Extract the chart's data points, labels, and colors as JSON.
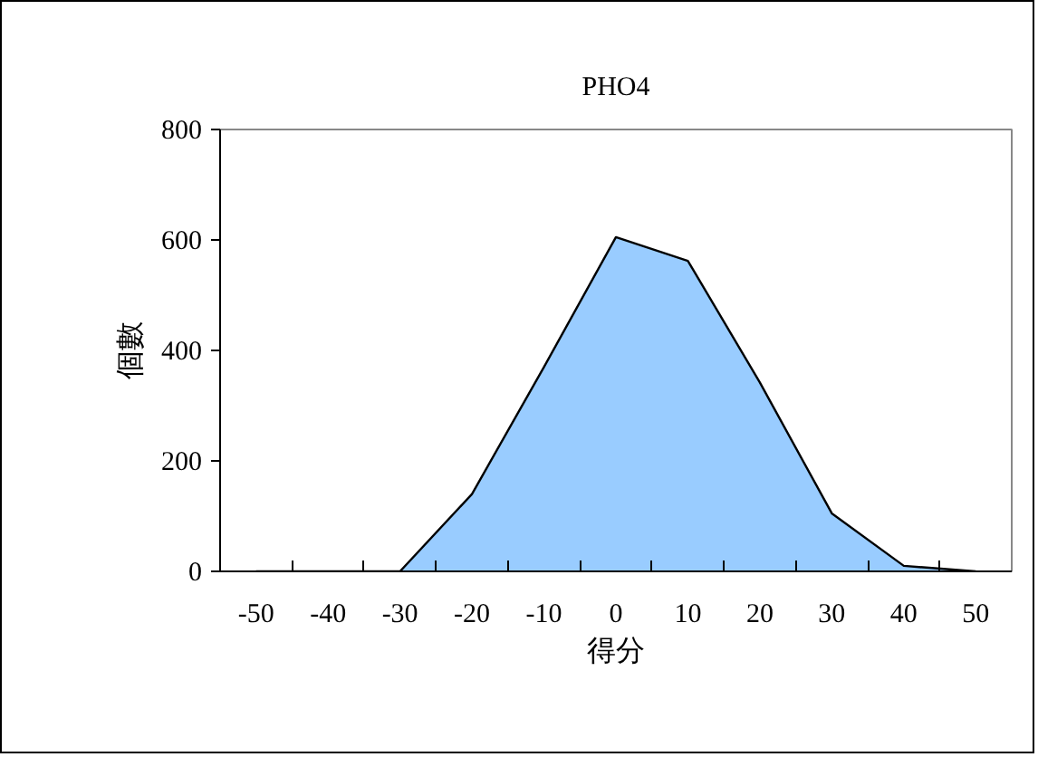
{
  "chart_data": {
    "type": "area",
    "title": "PHO4",
    "xlabel": "得分",
    "ylabel": "個數",
    "categories": [
      "-50",
      "-40",
      "-30",
      "-20",
      "-10",
      "0",
      "10",
      "20",
      "30",
      "40",
      "50"
    ],
    "series": [
      {
        "color": "#99ccff",
        "values": [
          0,
          0,
          0,
          140,
          370,
          605,
          562,
          342,
          105,
          10,
          0
        ]
      }
    ],
    "ylim": [
      0,
      800
    ],
    "yticks": [
      0,
      200,
      400,
      600,
      800
    ],
    "grid": false
  }
}
